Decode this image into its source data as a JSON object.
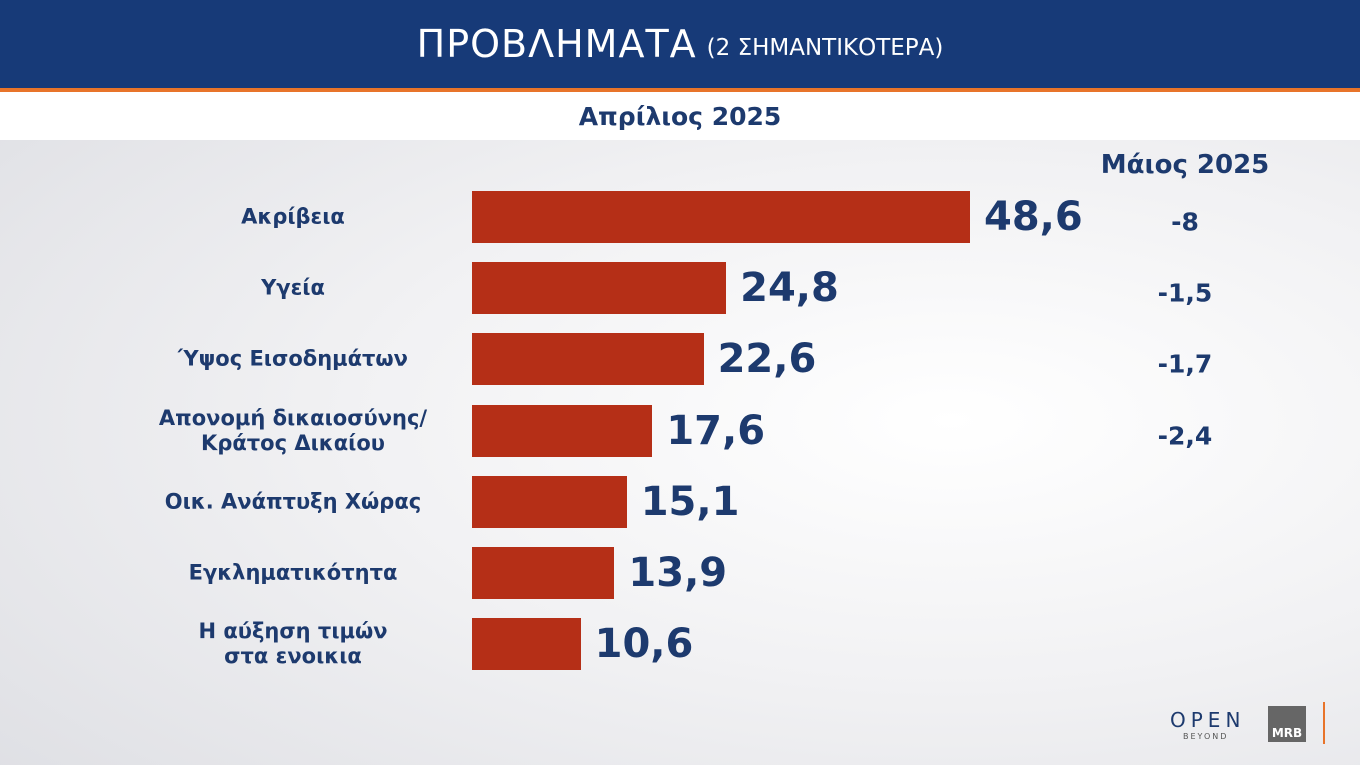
{
  "chart_data": {
    "type": "bar",
    "title": "ΠΡΟΒΛΗΜΑΤΑ",
    "subtitle": "(2 ΣΗΜΑΝΤΙΚΟΤΕΡΑ)",
    "period": "Απρίλιος 2025",
    "categories": [
      "Ακρίβεια",
      "Υγεία",
      "Ύψος Εισοδημάτων",
      "Απονομή δικαιοσύνης/\nΚράτος Δικαίου",
      "Οικ. Ανάπτυξη Χώρας",
      "Εγκληματικότητα",
      "Η αύξηση τιμών\nστα ενοικια"
    ],
    "values": [
      48.6,
      24.8,
      22.6,
      17.6,
      15.1,
      13.9,
      10.6
    ],
    "value_labels": [
      "48,6",
      "24,8",
      "22,6",
      "17,6",
      "15,1",
      "13,9",
      "10,6"
    ],
    "color": "#b52f17",
    "comparison": {
      "title": "Μάιος 2025",
      "values": [
        -8,
        -1.5,
        -1.7,
        -2.4,
        null,
        null,
        null
      ],
      "value_labels": [
        "-8",
        "-1,5",
        "-1,7",
        "-2,4",
        null,
        null,
        null
      ]
    },
    "logo_texts": [
      "OPEN",
      "BEYOND",
      "MRB"
    ]
  }
}
